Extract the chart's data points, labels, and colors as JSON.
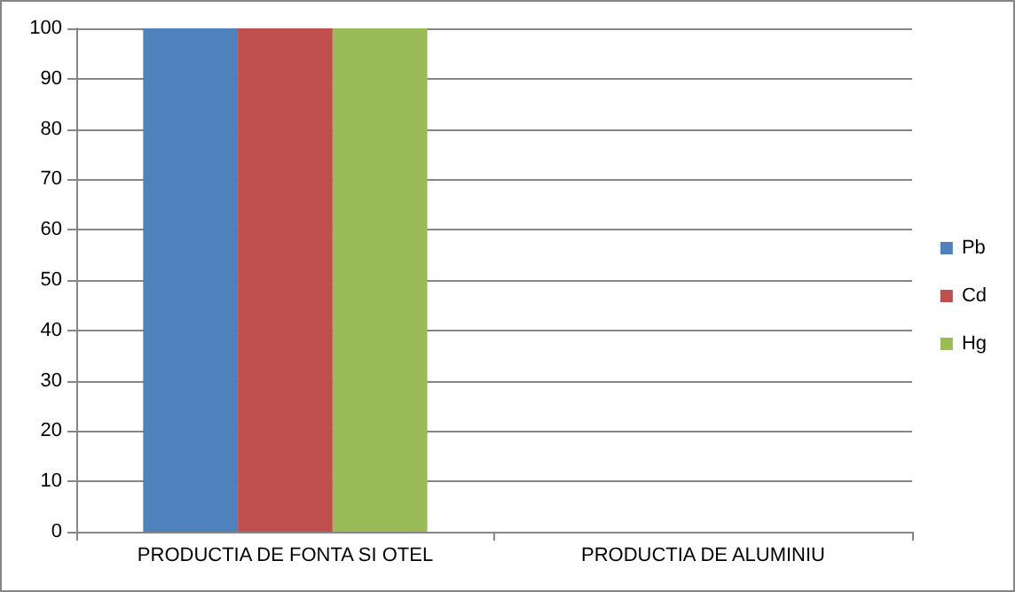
{
  "chart_data": {
    "type": "bar",
    "categories": [
      "PRODUCTIA DE FONTA SI OTEL",
      "PRODUCTIA DE ALUMINIU"
    ],
    "series": [
      {
        "name": "Pb",
        "color": "#4f81bd",
        "values": [
          100,
          0
        ]
      },
      {
        "name": "Cd",
        "color": "#c0504d",
        "values": [
          100,
          0
        ]
      },
      {
        "name": "Hg",
        "color": "#9bbb59",
        "values": [
          100,
          0
        ]
      }
    ],
    "ylim": [
      0,
      100
    ],
    "yticks": [
      0,
      10,
      20,
      30,
      40,
      50,
      60,
      70,
      80,
      90,
      100
    ],
    "grid": "y",
    "legend": "right"
  }
}
